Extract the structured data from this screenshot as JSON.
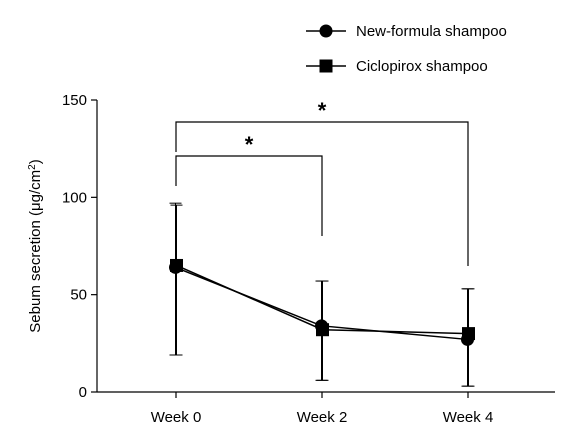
{
  "chart_data": {
    "type": "line",
    "categories": [
      "Week 0",
      "Week 2",
      "Week 4"
    ],
    "ylabel": "Sebum secretion (μg/cm²)",
    "ylabel_parts": {
      "main": "Sebum secretion (μg/cm",
      "sup": "2",
      "tail": ")"
    },
    "ylim": [
      0,
      150
    ],
    "yticks": [
      0,
      50,
      100,
      150
    ],
    "grid": false,
    "legend_position": "top-right",
    "series": [
      {
        "name": "New-formula shampoo",
        "marker": "circle",
        "values": [
          64,
          34,
          27
        ],
        "err_upper": [
          97,
          57,
          53
        ],
        "err_lower": [
          19,
          6,
          3
        ]
      },
      {
        "name": "Ciclopirox shampoo",
        "marker": "square",
        "values": [
          65,
          32,
          30
        ],
        "err_upper": [
          96,
          57,
          53
        ],
        "err_lower": [
          19,
          6,
          3
        ]
      }
    ],
    "significance": [
      {
        "from": "Week 0",
        "to": "Week 2",
        "label": "*"
      },
      {
        "from": "Week 0",
        "to": "Week 4",
        "label": "*"
      }
    ],
    "colors": {
      "line": "#000000"
    }
  }
}
